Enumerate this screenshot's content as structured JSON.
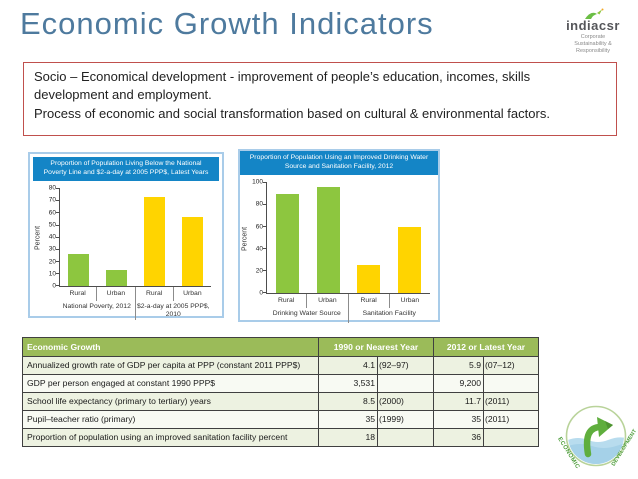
{
  "slide": {
    "title": "Economic Growth Indicators"
  },
  "brand": {
    "name": "indiacsr",
    "tagline": "Corporate\nSustainability &\nResponsibility"
  },
  "intro": {
    "line1": "Socio – Economical development - improvement of people’s education, incomes, skills development and employment.",
    "line2": "Process of economic and social transformation based on cultural & environmental factors."
  },
  "colors": {
    "title_blue": "#4e7a9e",
    "chart_header_blue": "#1485c6",
    "chart_border_blue": "#a9cce9",
    "bar_green": "#8dc63f",
    "bar_yellow": "#ffd400",
    "table_header_green": "#9bbb59",
    "textbox_border_red": "#c0504d"
  },
  "chart_data": [
    {
      "type": "bar",
      "title": "Proportion of Population Living Below the National Poverty Line and $2-a-day at 2005 PPP$, Latest Years",
      "ylabel": "Percent",
      "ylim": [
        0,
        80
      ],
      "ytick": 10,
      "grid": false,
      "categories": [
        "Rural",
        "Urban",
        "Rural",
        "Urban"
      ],
      "values": [
        26,
        13,
        73,
        57
      ],
      "bar_colors": [
        "#8dc63f",
        "#8dc63f",
        "#ffd400",
        "#ffd400"
      ],
      "groups": [
        {
          "label": "National Poverty, 2012",
          "span": 2
        },
        {
          "label": "$2-a-day at 2005 PPP$, 2010",
          "span": 2
        }
      ]
    },
    {
      "type": "bar",
      "title": "Proportion of Population Using an Improved Drinking Water Source and Sanitation Facility, 2012",
      "ylabel": "Percent",
      "ylim": [
        0,
        100
      ],
      "ytick": 20,
      "grid": false,
      "categories": [
        "Rural",
        "Urban",
        "Rural",
        "Urban"
      ],
      "values": [
        90,
        96,
        25,
        60
      ],
      "bar_colors": [
        "#8dc63f",
        "#8dc63f",
        "#ffd400",
        "#ffd400"
      ],
      "groups": [
        {
          "label": "Drinking Water Source",
          "span": 2
        },
        {
          "label": "Sanitation Facility",
          "span": 2
        }
      ]
    }
  ],
  "table": {
    "header": {
      "col1": "Economic Growth",
      "col2": "1990 or Nearest Year",
      "col3": "2012 or Latest Year"
    },
    "rows": [
      {
        "label": "Annualized growth rate of GDP per capita at PPP (constant 2011 PPP$)",
        "v1": "4.1",
        "y1": "(92–97)",
        "v2": "5.9",
        "y2": "(07–12)"
      },
      {
        "label": "GDP per person engaged at constant 1990 PPP$",
        "v1": "3,531",
        "y1": "",
        "v2": "9,200",
        "y2": ""
      },
      {
        "label": "School life expectancy (primary to tertiary) years",
        "v1": "8.5",
        "y1": "(2000)",
        "v2": "11.7",
        "y2": "(2011)"
      },
      {
        "label": "Pupil–teacher ratio (primary)",
        "v1": "35",
        "y1": "(1999)",
        "v2": "35",
        "y2": "(2011)"
      },
      {
        "label": "Proportion of population using an improved sanitation facility  percent",
        "v1": "18",
        "y1": "",
        "v2": "36",
        "y2": ""
      }
    ]
  },
  "badge": {
    "word_left": "ECONOMIC",
    "word_right": "DEVELOPMENT"
  }
}
